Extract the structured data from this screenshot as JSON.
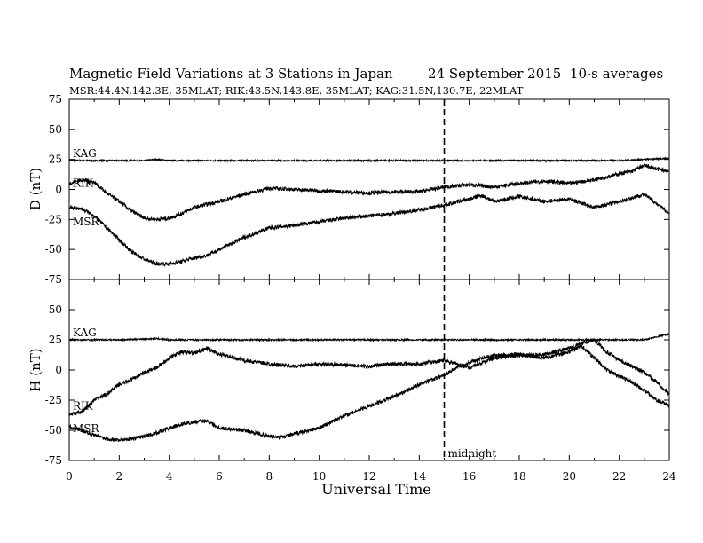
{
  "header": {
    "title": "Magnetic Field Variations at 3 Stations in Japan",
    "date": "24 September 2015",
    "averaging": "10-s averages",
    "stations": "MSR:44.4N,142.3E, 35MLAT;  RIK:43.5N,143.8E, 35MLAT;  KAG:31.5N,130.7E, 22MLAT"
  },
  "chart_data": {
    "type": "line",
    "xlabel": "Universal Time",
    "xlim": [
      0,
      24
    ],
    "xticks": [
      0,
      2,
      4,
      6,
      8,
      10,
      12,
      14,
      16,
      18,
      20,
      22,
      24
    ],
    "xtick_labels": [
      "0",
      "2",
      "4",
      "6",
      "8",
      "10",
      "12",
      "14",
      "16",
      "18",
      "20",
      "22",
      "24"
    ],
    "annotation": {
      "text": "midnight",
      "x": 15
    },
    "panels": [
      {
        "ylabel": "D (nT)",
        "ylim": [
          -75,
          75
        ],
        "yticks": [
          -75,
          -50,
          -25,
          0,
          25,
          50,
          75
        ],
        "ytick_labels": [
          "-75",
          "-50",
          "-25",
          "0",
          "25",
          "50",
          "75"
        ],
        "series": [
          {
            "name": "KAG",
            "x": [
              0,
              1,
              2,
              3,
              3.5,
              4,
              6,
              8,
              10,
              12,
              14,
              15,
              16,
              18,
              20,
              22,
              23,
              24
            ],
            "y": [
              24,
              24,
              24,
              24,
              25,
              24,
              24,
              24,
              24,
              24,
              24,
              24,
              24,
              24,
              24,
              24,
              25,
              26
            ]
          },
          {
            "name": "RIK",
            "x": [
              0,
              0.5,
              1,
              1.5,
              2,
              2.5,
              3,
              3.5,
              4,
              4.5,
              5,
              6,
              7,
              8,
              9,
              10,
              11,
              12,
              13,
              14,
              15,
              16,
              17,
              18,
              19,
              20,
              21,
              22,
              22.5,
              23,
              23.5,
              24
            ],
            "y": [
              5,
              8,
              6,
              -3,
              -10,
              -18,
              -24,
              -25,
              -24,
              -20,
              -15,
              -10,
              -4,
              1,
              0,
              -1,
              -2,
              -3,
              -2,
              -2,
              2,
              4,
              2,
              5,
              7,
              5,
              8,
              13,
              15,
              20,
              17,
              15
            ]
          },
          {
            "name": "MSR",
            "x": [
              0,
              0.5,
              1,
              1.5,
              2,
              2.5,
              3,
              3.5,
              4,
              4.5,
              5,
              5.5,
              6,
              7,
              8,
              9,
              10,
              11,
              12,
              13,
              14,
              15,
              16,
              16.5,
              17,
              18,
              19,
              20,
              21,
              22,
              22.5,
              23,
              23.5,
              24
            ],
            "y": [
              -15,
              -16,
              -22,
              -32,
              -42,
              -52,
              -58,
              -62,
              -62,
              -60,
              -57,
              -55,
              -50,
              -40,
              -32,
              -30,
              -27,
              -24,
              -22,
              -20,
              -17,
              -13,
              -8,
              -5,
              -10,
              -6,
              -10,
              -8,
              -15,
              -10,
              -7,
              -4,
              -12,
              -20
            ]
          }
        ]
      },
      {
        "ylabel": "H (nT)",
        "ylim": [
          -75,
          75
        ],
        "yticks": [
          -75,
          -50,
          -25,
          0,
          25,
          50,
          75
        ],
        "ytick_labels": [
          "-75",
          "-50",
          "-25",
          "0",
          "25",
          "50",
          "75"
        ],
        "series": [
          {
            "name": "KAG",
            "x": [
              0,
              2,
              3.5,
              4,
              6,
              8,
              10,
              12,
              14,
              15,
              16,
              18,
              20,
              22,
              23,
              24
            ],
            "y": [
              25,
              25,
              26,
              25,
              25,
              25,
              25,
              25,
              25,
              25,
              25,
              25,
              25,
              25,
              25,
              30
            ]
          },
          {
            "name": "RIK",
            "x": [
              0,
              0.5,
              1,
              1.5,
              2,
              2.5,
              3,
              3.5,
              4,
              4.5,
              5,
              5.5,
              6,
              7,
              8,
              9,
              10,
              11,
              12,
              13,
              14,
              15,
              16,
              17,
              18,
              19,
              20,
              20.5,
              21,
              21.5,
              22,
              22.5,
              23,
              23.5,
              24
            ],
            "y": [
              -37,
              -35,
              -25,
              -20,
              -12,
              -8,
              -2,
              2,
              10,
              15,
              14,
              18,
              13,
              8,
              5,
              3,
              5,
              4,
              3,
              5,
              5,
              8,
              2,
              10,
              12,
              13,
              18,
              22,
              25,
              15,
              8,
              3,
              -2,
              -10,
              -20
            ]
          },
          {
            "name": "MSR",
            "x": [
              0,
              0.5,
              1,
              1.5,
              2,
              2.5,
              3,
              3.5,
              4,
              4.5,
              5,
              5.5,
              6,
              7,
              8,
              8.5,
              9,
              10,
              11,
              12,
              13,
              14,
              15,
              15.5,
              16,
              16.5,
              17,
              18,
              19,
              20,
              20.5,
              21,
              21.5,
              22,
              22.5,
              23,
              23.5,
              24
            ],
            "y": [
              -47,
              -50,
              -54,
              -57,
              -58,
              -57,
              -55,
              -52,
              -48,
              -45,
              -43,
              -42,
              -48,
              -50,
              -55,
              -56,
              -53,
              -48,
              -38,
              -30,
              -22,
              -12,
              -4,
              2,
              6,
              10,
              12,
              13,
              10,
              15,
              20,
              10,
              0,
              -5,
              -10,
              -17,
              -25,
              -30
            ]
          }
        ]
      }
    ]
  }
}
